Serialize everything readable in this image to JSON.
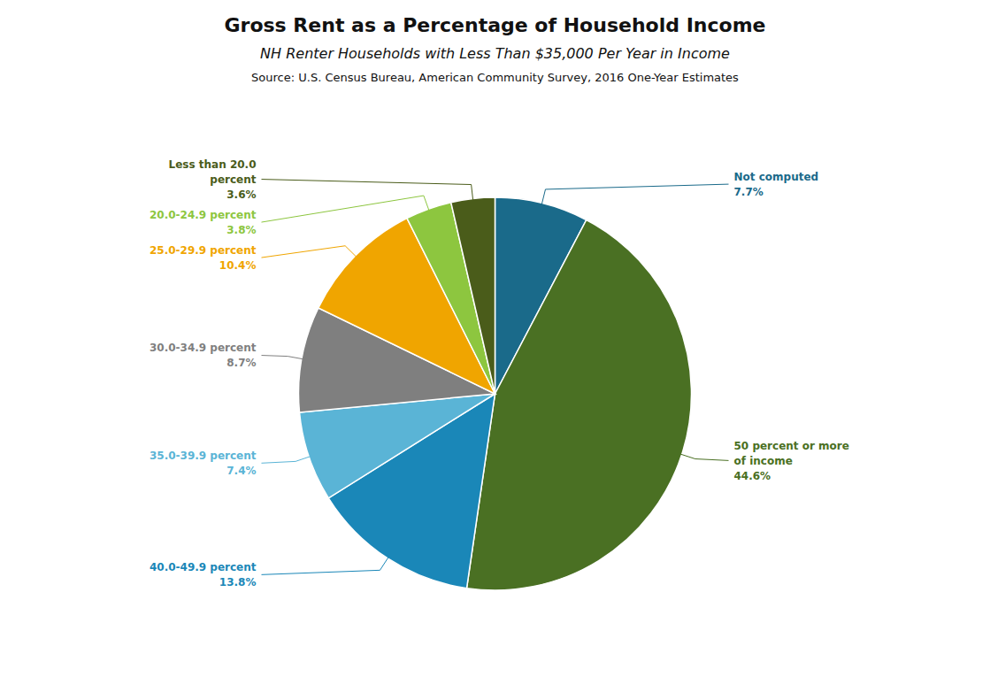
{
  "chart_data": {
    "type": "pie",
    "title": "Gross Rent as a Percentage of Household Income",
    "subtitle": "NH Renter Households with Less Than $35,000 Per Year in Income",
    "annotations": [
      "Source: U.S. Census Bureau, American Community Survey, 2016 One-Year Estimates"
    ],
    "categories": [
      "Not computed",
      "50 percent or more\nof income",
      "40.0-49.9 percent",
      "35.0-39.9 percent",
      "30.0-34.9 percent",
      "25.0-29.9 percent",
      "20.0-24.9 percent",
      "Less than 20.0\npercent"
    ],
    "values": [
      7.7,
      44.6,
      13.8,
      7.4,
      8.7,
      10.4,
      3.8,
      3.6
    ],
    "value_labels": [
      "7.7%",
      "44.6%",
      "13.8%",
      "7.4%",
      "8.7%",
      "10.4%",
      "3.8%",
      "3.6%"
    ],
    "colors": [
      "#1a6a8a",
      "#4a7023",
      "#1a87b8",
      "#5ab4d6",
      "#7f7f7f",
      "#f0a500",
      "#8dc63f",
      "#4a5c1a"
    ],
    "data_labels": true
  }
}
